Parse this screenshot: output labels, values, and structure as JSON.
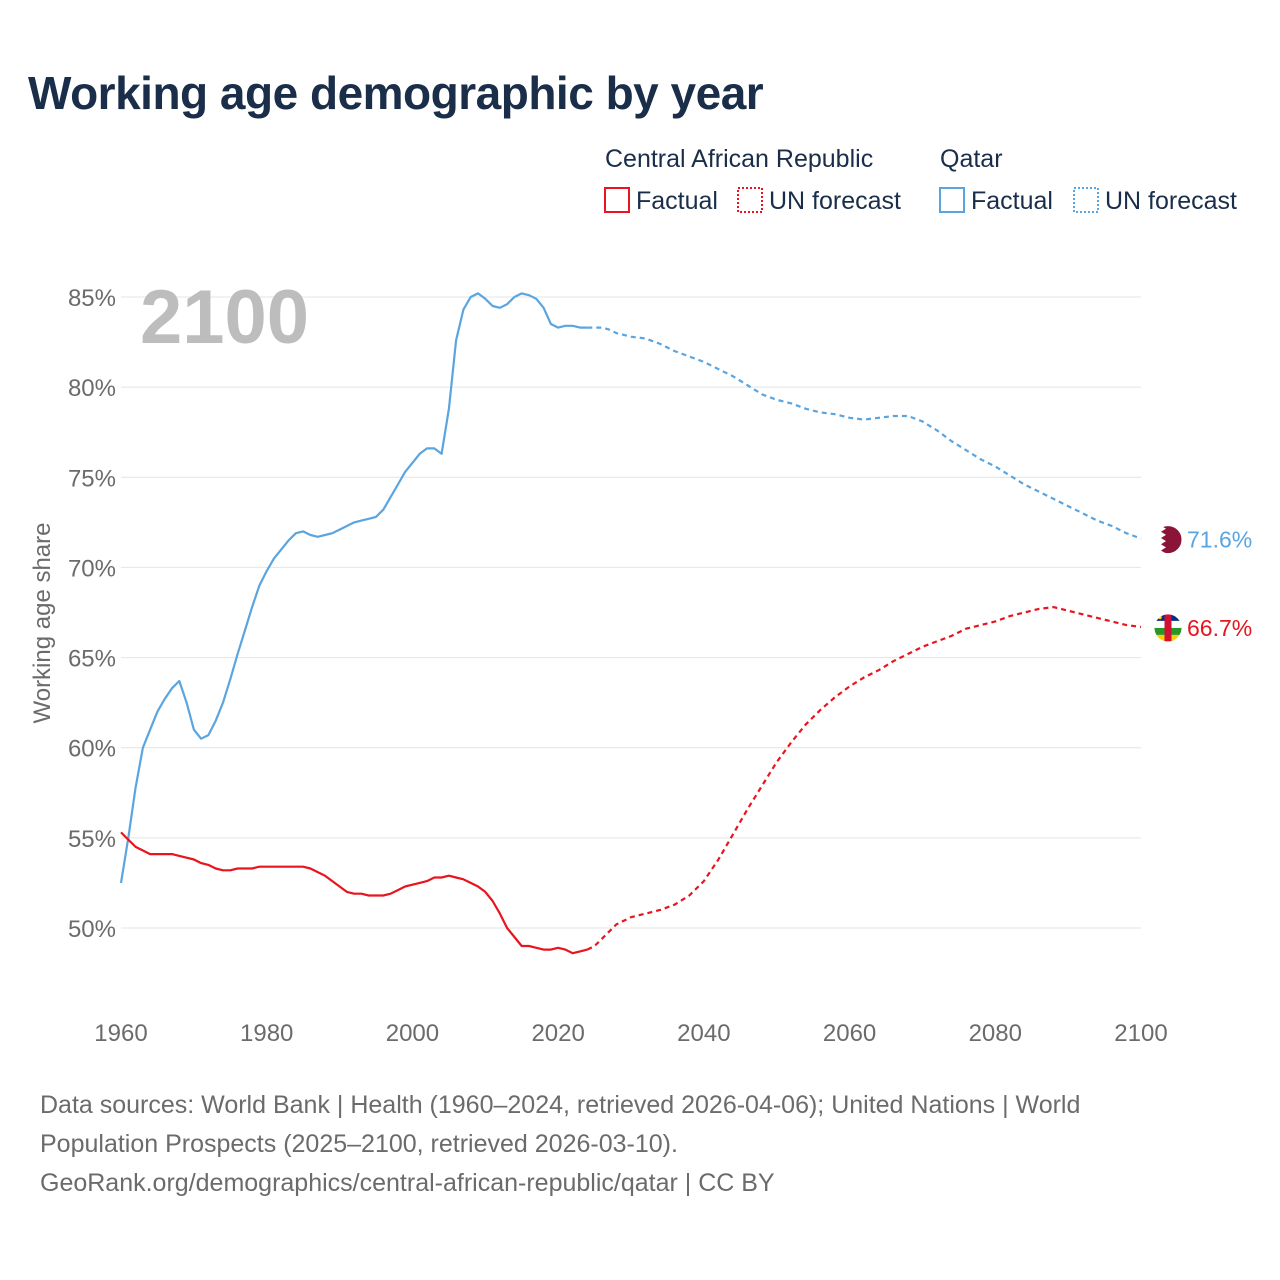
{
  "title": "Working age demographic by year",
  "footer": {
    "line1": "Data sources: World Bank | Health (1960–2024, retrieved 2026-04-06); United Nations | World",
    "line2": "Population Prospects (2025–2100, retrieved 2026-03-10).",
    "line3": "GeoRank.org/demographics/central-african-republic/qatar | CC BY"
  },
  "chart_data": {
    "type": "line",
    "title": "Working age demographic by year",
    "year_label": "2100",
    "ylabel": "Working age share",
    "xlabel": "",
    "xlim": [
      1960,
      2100
    ],
    "ylim": [
      45.3,
      85
    ],
    "x_ticks": [
      1960,
      1980,
      2000,
      2020,
      2040,
      2060,
      2080,
      2100
    ],
    "y_ticks": [
      50,
      55,
      60,
      65,
      70,
      75,
      80,
      85
    ],
    "y_tick_labels": [
      "50%",
      "55%",
      "60%",
      "65%",
      "70%",
      "75%",
      "80%",
      "85%"
    ],
    "x_tick_labels": [
      "1960",
      "1980",
      "2000",
      "2020",
      "2040",
      "2060",
      "2080",
      "2100"
    ],
    "legend": [
      {
        "group": "Central African Republic",
        "items": [
          "Factual",
          "UN forecast"
        ],
        "color": "#e8141e"
      },
      {
        "group": "Qatar",
        "items": [
          "Factual",
          "UN forecast"
        ],
        "color": "#5aa5e0"
      }
    ],
    "series": [
      {
        "name": "Qatar",
        "color": "#5aa5e0",
        "end_label": "71.6%",
        "flag": "qatar-flag-icon",
        "factual": [
          [
            1960,
            52.5
          ],
          [
            1961,
            55.0
          ],
          [
            1962,
            57.8
          ],
          [
            1963,
            60.0
          ],
          [
            1964,
            61.0
          ],
          [
            1965,
            62.0
          ],
          [
            1966,
            62.7
          ],
          [
            1967,
            63.3
          ],
          [
            1968,
            63.7
          ],
          [
            1969,
            62.5
          ],
          [
            1970,
            61.0
          ],
          [
            1971,
            60.5
          ],
          [
            1972,
            60.7
          ],
          [
            1973,
            61.5
          ],
          [
            1974,
            62.5
          ],
          [
            1975,
            63.8
          ],
          [
            1976,
            65.2
          ],
          [
            1977,
            66.5
          ],
          [
            1978,
            67.8
          ],
          [
            1979,
            69.0
          ],
          [
            1980,
            69.8
          ],
          [
            1981,
            70.5
          ],
          [
            1982,
            71.0
          ],
          [
            1983,
            71.5
          ],
          [
            1984,
            71.9
          ],
          [
            1985,
            72.0
          ],
          [
            1986,
            71.8
          ],
          [
            1987,
            71.7
          ],
          [
            1988,
            71.8
          ],
          [
            1989,
            71.9
          ],
          [
            1990,
            72.1
          ],
          [
            1991,
            72.3
          ],
          [
            1992,
            72.5
          ],
          [
            1993,
            72.6
          ],
          [
            1994,
            72.7
          ],
          [
            1995,
            72.8
          ],
          [
            1996,
            73.2
          ],
          [
            1997,
            73.9
          ],
          [
            1998,
            74.6
          ],
          [
            1999,
            75.3
          ],
          [
            2000,
            75.8
          ],
          [
            2001,
            76.3
          ],
          [
            2002,
            76.6
          ],
          [
            2003,
            76.6
          ],
          [
            2004,
            76.3
          ],
          [
            2005,
            78.8
          ],
          [
            2006,
            82.6
          ],
          [
            2007,
            84.3
          ],
          [
            2008,
            85.0
          ],
          [
            2009,
            85.2
          ],
          [
            2010,
            84.9
          ],
          [
            2011,
            84.5
          ],
          [
            2012,
            84.4
          ],
          [
            2013,
            84.6
          ],
          [
            2014,
            85.0
          ],
          [
            2015,
            85.2
          ],
          [
            2016,
            85.1
          ],
          [
            2017,
            84.9
          ],
          [
            2018,
            84.4
          ],
          [
            2019,
            83.5
          ],
          [
            2020,
            83.3
          ],
          [
            2021,
            83.4
          ],
          [
            2022,
            83.4
          ],
          [
            2023,
            83.3
          ],
          [
            2024,
            83.3
          ]
        ],
        "forecast": [
          [
            2024,
            83.3
          ],
          [
            2025,
            83.3
          ],
          [
            2026,
            83.3
          ],
          [
            2027,
            83.2
          ],
          [
            2028,
            83.0
          ],
          [
            2030,
            82.8
          ],
          [
            2032,
            82.7
          ],
          [
            2034,
            82.4
          ],
          [
            2036,
            82.0
          ],
          [
            2038,
            81.7
          ],
          [
            2040,
            81.4
          ],
          [
            2042,
            81.0
          ],
          [
            2044,
            80.6
          ],
          [
            2046,
            80.1
          ],
          [
            2048,
            79.6
          ],
          [
            2050,
            79.3
          ],
          [
            2052,
            79.1
          ],
          [
            2054,
            78.8
          ],
          [
            2056,
            78.6
          ],
          [
            2058,
            78.5
          ],
          [
            2060,
            78.3
          ],
          [
            2062,
            78.2
          ],
          [
            2064,
            78.3
          ],
          [
            2066,
            78.4
          ],
          [
            2068,
            78.4
          ],
          [
            2070,
            78.1
          ],
          [
            2072,
            77.6
          ],
          [
            2074,
            77.0
          ],
          [
            2076,
            76.5
          ],
          [
            2078,
            76.0
          ],
          [
            2080,
            75.6
          ],
          [
            2082,
            75.1
          ],
          [
            2084,
            74.6
          ],
          [
            2086,
            74.2
          ],
          [
            2088,
            73.8
          ],
          [
            2090,
            73.4
          ],
          [
            2092,
            73.0
          ],
          [
            2094,
            72.6
          ],
          [
            2096,
            72.3
          ],
          [
            2098,
            71.9
          ],
          [
            2100,
            71.6
          ]
        ]
      },
      {
        "name": "Central African Republic",
        "color": "#e8141e",
        "end_label": "66.7%",
        "flag": "central-african-republic-flag-icon",
        "factual": [
          [
            1960,
            55.3
          ],
          [
            1961,
            54.9
          ],
          [
            1962,
            54.5
          ],
          [
            1963,
            54.3
          ],
          [
            1964,
            54.1
          ],
          [
            1965,
            54.1
          ],
          [
            1966,
            54.1
          ],
          [
            1967,
            54.1
          ],
          [
            1968,
            54.0
          ],
          [
            1969,
            53.9
          ],
          [
            1970,
            53.8
          ],
          [
            1971,
            53.6
          ],
          [
            1972,
            53.5
          ],
          [
            1973,
            53.3
          ],
          [
            1974,
            53.2
          ],
          [
            1975,
            53.2
          ],
          [
            1976,
            53.3
          ],
          [
            1977,
            53.3
          ],
          [
            1978,
            53.3
          ],
          [
            1979,
            53.4
          ],
          [
            1980,
            53.4
          ],
          [
            1981,
            53.4
          ],
          [
            1982,
            53.4
          ],
          [
            1983,
            53.4
          ],
          [
            1984,
            53.4
          ],
          [
            1985,
            53.4
          ],
          [
            1986,
            53.3
          ],
          [
            1987,
            53.1
          ],
          [
            1988,
            52.9
          ],
          [
            1989,
            52.6
          ],
          [
            1990,
            52.3
          ],
          [
            1991,
            52.0
          ],
          [
            1992,
            51.9
          ],
          [
            1993,
            51.9
          ],
          [
            1994,
            51.8
          ],
          [
            1995,
            51.8
          ],
          [
            1996,
            51.8
          ],
          [
            1997,
            51.9
          ],
          [
            1998,
            52.1
          ],
          [
            1999,
            52.3
          ],
          [
            2000,
            52.4
          ],
          [
            2001,
            52.5
          ],
          [
            2002,
            52.6
          ],
          [
            2003,
            52.8
          ],
          [
            2004,
            52.8
          ],
          [
            2005,
            52.9
          ],
          [
            2006,
            52.8
          ],
          [
            2007,
            52.7
          ],
          [
            2008,
            52.5
          ],
          [
            2009,
            52.3
          ],
          [
            2010,
            52.0
          ],
          [
            2011,
            51.5
          ],
          [
            2012,
            50.8
          ],
          [
            2013,
            50.0
          ],
          [
            2014,
            49.5
          ],
          [
            2015,
            49.0
          ],
          [
            2016,
            49.0
          ],
          [
            2017,
            48.9
          ],
          [
            2018,
            48.8
          ],
          [
            2019,
            48.8
          ],
          [
            2020,
            48.9
          ],
          [
            2021,
            48.8
          ],
          [
            2022,
            48.6
          ],
          [
            2023,
            48.7
          ],
          [
            2024,
            48.8
          ]
        ],
        "forecast": [
          [
            2024,
            48.8
          ],
          [
            2025,
            49.0
          ],
          [
            2026,
            49.4
          ],
          [
            2027,
            49.8
          ],
          [
            2028,
            50.2
          ],
          [
            2030,
            50.6
          ],
          [
            2032,
            50.8
          ],
          [
            2034,
            51.0
          ],
          [
            2036,
            51.3
          ],
          [
            2038,
            51.8
          ],
          [
            2040,
            52.6
          ],
          [
            2042,
            53.8
          ],
          [
            2044,
            55.2
          ],
          [
            2046,
            56.6
          ],
          [
            2048,
            57.9
          ],
          [
            2050,
            59.2
          ],
          [
            2052,
            60.3
          ],
          [
            2054,
            61.3
          ],
          [
            2056,
            62.1
          ],
          [
            2058,
            62.8
          ],
          [
            2060,
            63.4
          ],
          [
            2062,
            63.9
          ],
          [
            2064,
            64.3
          ],
          [
            2066,
            64.8
          ],
          [
            2068,
            65.2
          ],
          [
            2070,
            65.6
          ],
          [
            2072,
            65.9
          ],
          [
            2074,
            66.2
          ],
          [
            2076,
            66.6
          ],
          [
            2078,
            66.8
          ],
          [
            2080,
            67.0
          ],
          [
            2082,
            67.3
          ],
          [
            2084,
            67.5
          ],
          [
            2086,
            67.7
          ],
          [
            2088,
            67.8
          ],
          [
            2090,
            67.6
          ],
          [
            2092,
            67.4
          ],
          [
            2094,
            67.2
          ],
          [
            2096,
            67.0
          ],
          [
            2098,
            66.8
          ],
          [
            2100,
            66.7
          ]
        ]
      }
    ]
  }
}
